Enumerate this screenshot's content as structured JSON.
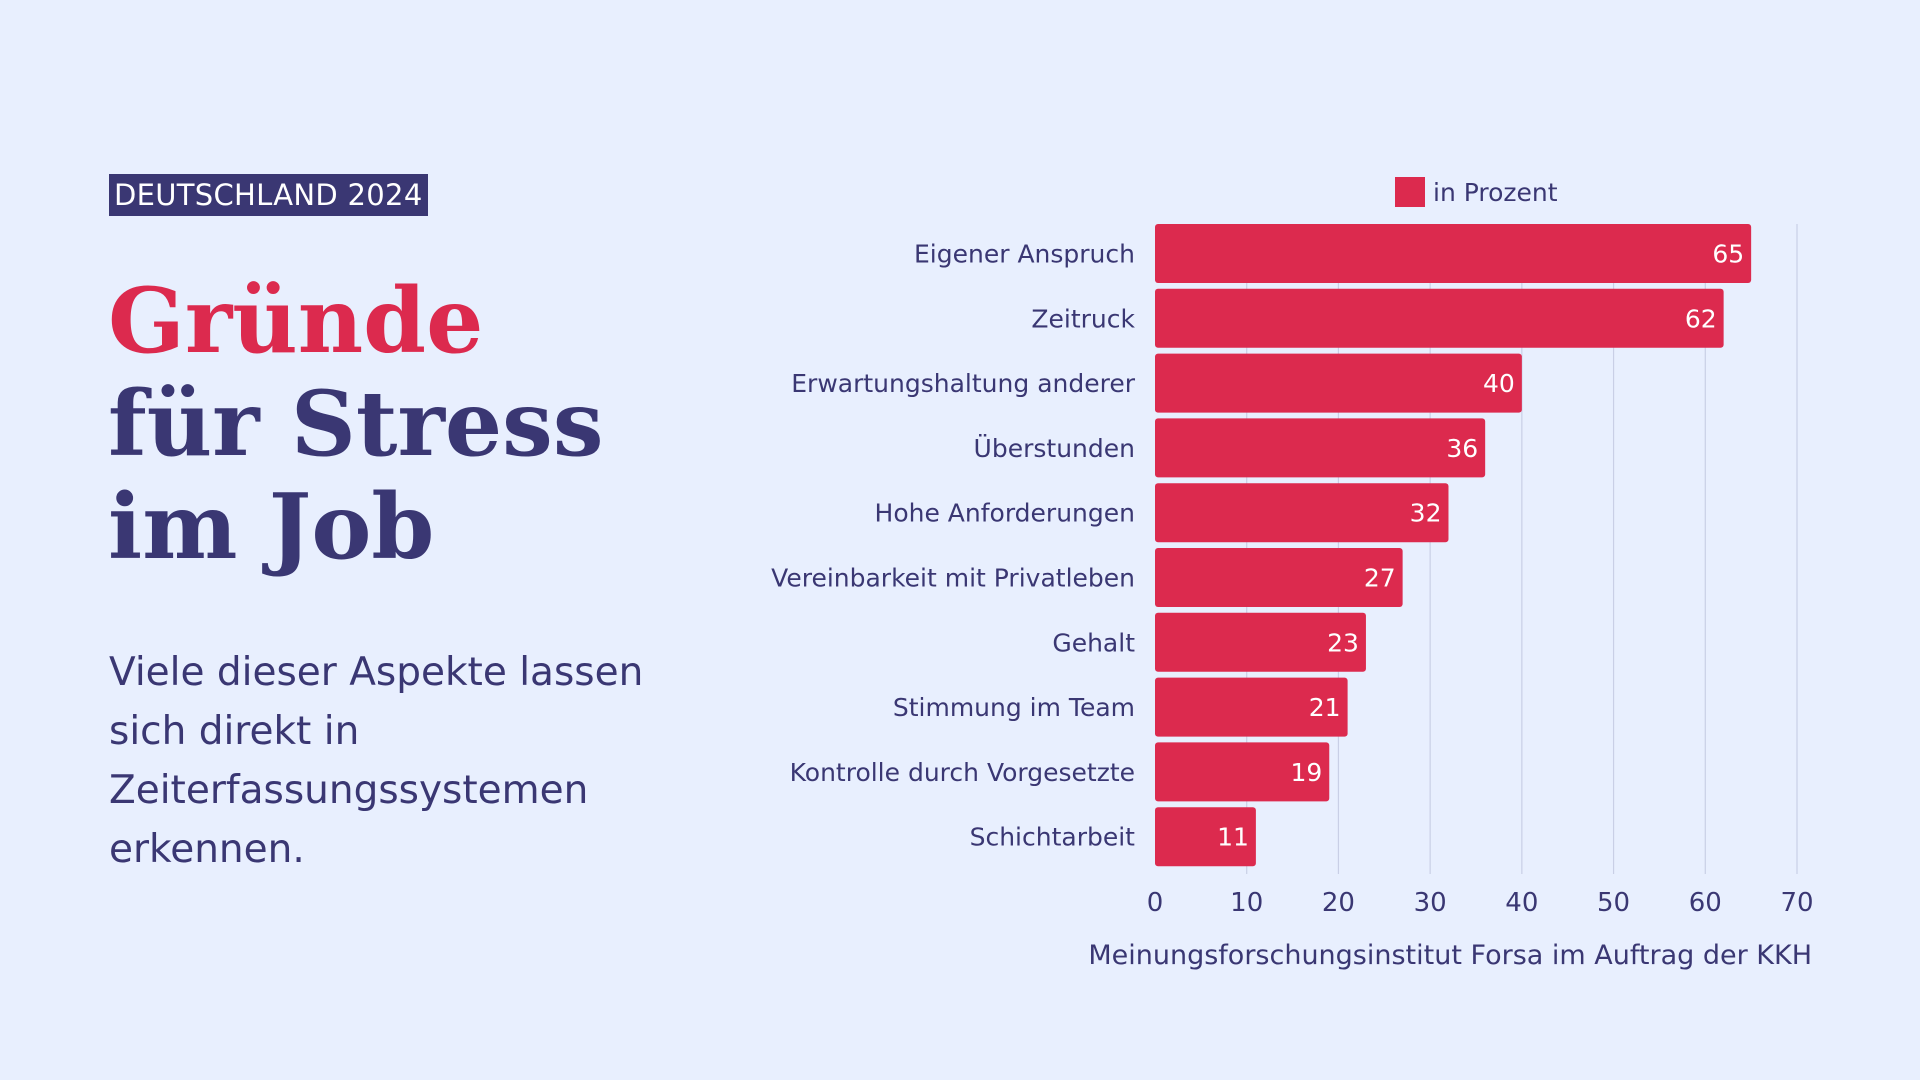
{
  "badge": "DEUTSCHLAND 2024",
  "title": {
    "line1": "Gründe",
    "line2": "für Stress",
    "line3": "im Job"
  },
  "subtitle": "Viele dieser Aspekte lassen sich direkt in Zeiterfassungssystemen erkennen.",
  "source": "Meinungsforschungsinstitut Forsa im Auftrag der KKH",
  "colors": {
    "background": "#e8effe",
    "accent": "#dc2a4e",
    "dark": "#3a3773",
    "grid": "#c9cfe6"
  },
  "chart_data": {
    "type": "bar",
    "orientation": "horizontal",
    "categories": [
      "Eigener Anspruch",
      "Zeitruck",
      "Erwartungshaltung anderer",
      "Überstunden",
      "Hohe Anforderungen",
      "Vereinbarkeit mit Privatleben",
      "Gehalt",
      "Stimmung im Team",
      "Kontrolle durch Vorgesetzte",
      "Schichtarbeit"
    ],
    "series": [
      {
        "name": "in Prozent",
        "values": [
          65,
          62,
          40,
          36,
          32,
          27,
          23,
          21,
          19,
          11
        ]
      }
    ],
    "xlim": [
      0,
      70
    ],
    "xticks": [
      0,
      10,
      20,
      30,
      40,
      50,
      60,
      70
    ],
    "grid": "vertical",
    "legend": "top",
    "data_labels": "inside-end"
  }
}
